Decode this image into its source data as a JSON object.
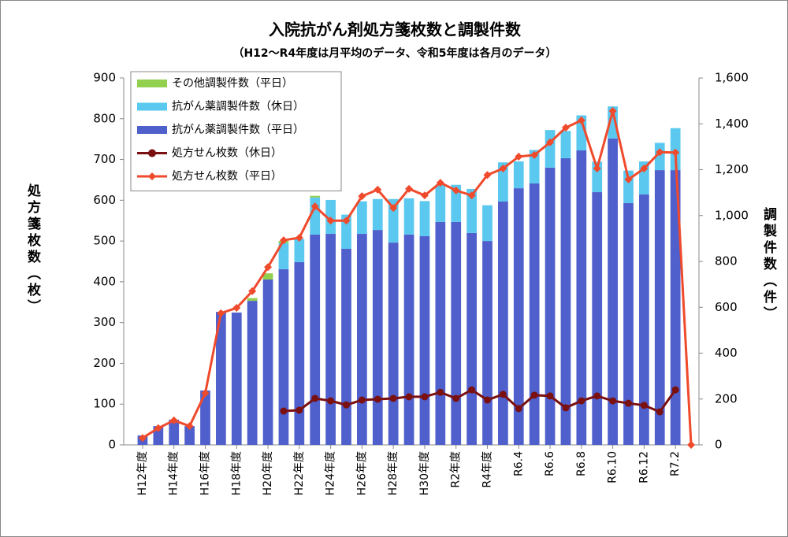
{
  "chart_data": {
    "type": "combo",
    "title": "入院抗がん剤処方箋枚数と調製件数",
    "subtitle": "（H12～R4年度は月平均のデータ、令和5年度は各月のデータ）",
    "y_label": "処方箋枚数（枚）",
    "y2_label": "調製件数（件）",
    "categories": [
      "H12年度",
      null,
      "H14年度",
      null,
      "H16年度",
      null,
      "H18年度",
      null,
      "H20年度",
      null,
      "H22年度",
      null,
      "H24年度",
      null,
      "H26年度",
      null,
      "H28年度",
      null,
      "H30年度",
      null,
      "R2年度",
      null,
      "R4年度",
      null,
      "R6.4",
      null,
      "R6.6",
      null,
      "R6.8",
      null,
      "R6.10",
      null,
      "R6.12",
      null,
      "R7.2",
      null
    ],
    "ylim": [
      0,
      900
    ],
    "yticks": [
      0,
      100,
      200,
      300,
      400,
      500,
      600,
      700,
      800,
      900
    ],
    "y2lim": [
      0,
      1600
    ],
    "y2ticks": [
      0,
      200,
      400,
      600,
      800,
      {
        "value": 1000,
        "label": "1,000"
      },
      {
        "value": 1200,
        "label": "1,200"
      },
      {
        "value": 1400,
        "label": "1,400"
      },
      {
        "value": 1600,
        "label": "1,600"
      }
    ],
    "grid": false,
    "legend": "top-left",
    "series": [
      {
        "name": "その他調製件数（平日）",
        "type": "bar",
        "axis": "y2",
        "color": "#92d050",
        "values": [
          0,
          0,
          0,
          0,
          0,
          0,
          0,
          12,
          27,
          9,
          0,
          7,
          0,
          0,
          0,
          0,
          0,
          0,
          0,
          0,
          0,
          0,
          0,
          0,
          0,
          0,
          0,
          0,
          0,
          0,
          0,
          0,
          0,
          0,
          0,
          null
        ]
      },
      {
        "name": "抗がん薬調製件数（休日）",
        "type": "bar",
        "axis": "y2",
        "color": "#5bc8ef",
        "values": [
          0,
          0,
          0,
          0,
          0,
          0,
          0,
          0,
          0,
          114,
          101,
          162,
          148,
          149,
          142,
          135,
          190,
          158,
          153,
          162,
          162,
          192,
          156,
          171,
          117,
          146,
          164,
          119,
          153,
          133,
          140,
          142,
          144,
          119,
          183,
          null
        ]
      },
      {
        "name": "抗がん薬調製件数（平日）",
        "type": "bar",
        "axis": "y2",
        "color": "#4f5fcb",
        "values": [
          41,
          82,
          110,
          82,
          237,
          580,
          577,
          628,
          721,
          766,
          797,
          917,
          920,
          855,
          920,
          937,
          882,
          917,
          910,
          972,
          972,
          924,
          889,
          1061,
          1119,
          1140,
          1209,
          1250,
          1284,
          1102,
          1336,
          1054,
          1092,
          1198,
          1198,
          null
        ]
      },
      {
        "name": "処方せん枚数（休日）",
        "type": "line",
        "color": "#7a1010",
        "marker": "circle",
        "values": [
          null,
          null,
          null,
          null,
          null,
          null,
          null,
          null,
          null,
          83,
          85,
          114,
          108,
          98,
          110,
          112,
          114,
          118,
          118,
          129,
          114,
          135,
          110,
          124,
          89,
          122,
          120,
          91,
          108,
          120,
          108,
          102,
          97,
          81,
          135,
          null
        ]
      },
      {
        "name": "処方せん枚数（平日）",
        "type": "line",
        "color": "#f04a2c",
        "marker": "diamond",
        "values": [
          17,
          41,
          60,
          46,
          127,
          323,
          336,
          377,
          436,
          502,
          508,
          585,
          550,
          550,
          610,
          626,
          581,
          628,
          612,
          643,
          624,
          612,
          662,
          678,
          707,
          711,
          742,
          778,
          796,
          678,
          819,
          651,
          678,
          718,
          717,
          0
        ]
      }
    ]
  }
}
